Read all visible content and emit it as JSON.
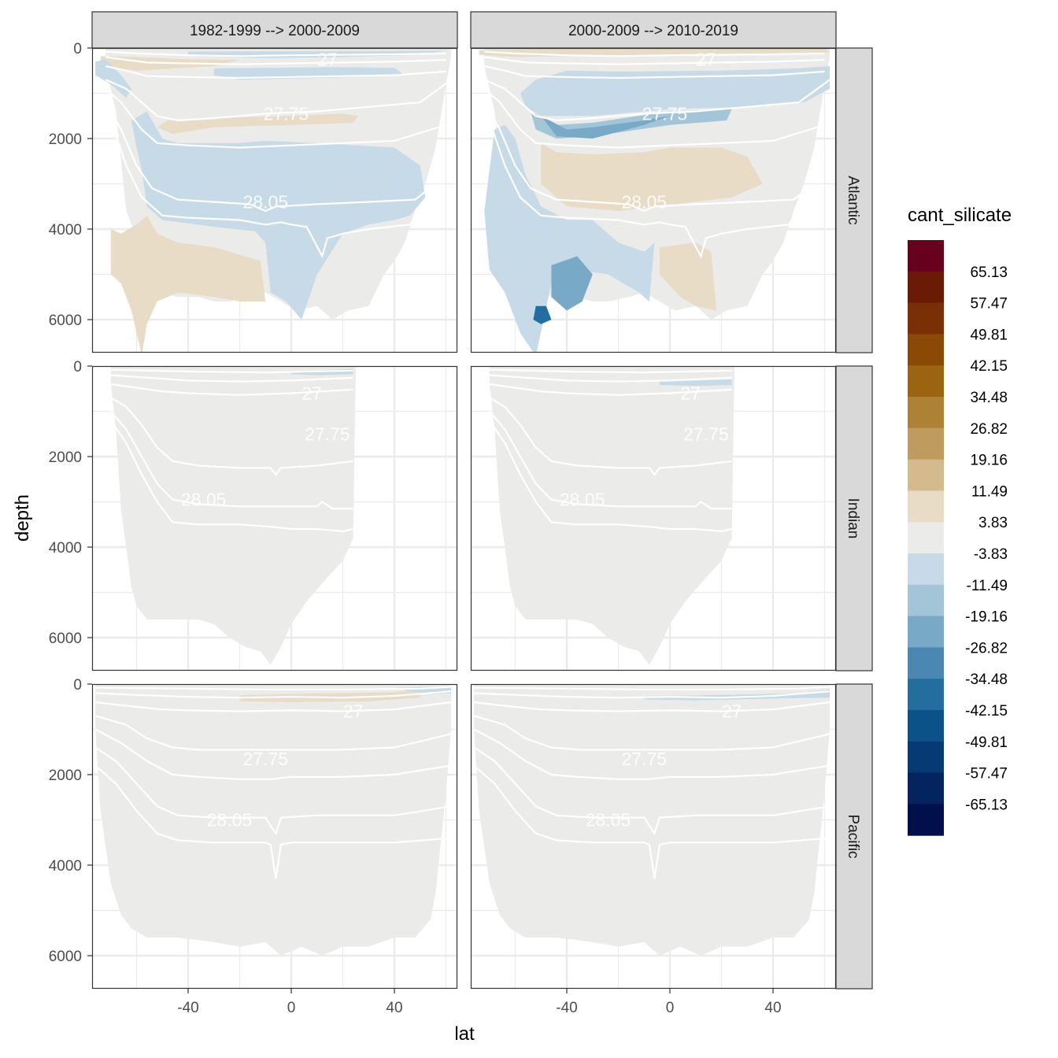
{
  "chart_data": {
    "type": "heatmap",
    "title": "",
    "xlabel": "lat",
    "ylabel": "depth",
    "x_ticks": [
      -40,
      0,
      40
    ],
    "y_ticks": [
      0,
      2000,
      4000,
      6000
    ],
    "xlim": [
      -78,
      64
    ],
    "ylim": [
      6800,
      0
    ],
    "y_reversed": true,
    "columns": [
      "1982-1999 --> 2000-2009",
      "2000-2009 --> 2010-2019"
    ],
    "rows": [
      "Atlantic",
      "Indian",
      "Pacific"
    ],
    "legend": {
      "title": "cant_silicate",
      "labels": [
        "65.13",
        "57.47",
        "49.81",
        "42.15",
        "34.48",
        "26.82",
        "19.16",
        "11.49",
        "3.83",
        "-3.83",
        "-11.49",
        "-19.16",
        "-26.82",
        "-34.48",
        "-42.15",
        "-49.81",
        "-57.47",
        "-65.13"
      ],
      "colors": [
        "#67001f",
        "#6a1a05",
        "#7a3004",
        "#8a4a06",
        "#9a6410",
        "#ae8234",
        "#bf9b5e",
        "#d4bb8e",
        "#e8dcc7",
        "#ebebe9",
        "#c7dae7",
        "#a2c5d8",
        "#78a9c7",
        "#4a88b3",
        "#236e9f",
        "#0a5288",
        "#053a75",
        "#03245f",
        "#020f4d"
      ]
    },
    "contour_labels": [
      "27",
      "27.75",
      "28.05"
    ],
    "colors": {
      "background": "#ffffff",
      "panel_fill": "#ebebe9",
      "grid": "#ebebeb",
      "strip": "#d9d9d9",
      "contour": "#ffffff",
      "positive_light": "#e8dcc7",
      "positive_mid": "#d4bb8e",
      "negative_light": "#c7dae7",
      "negative_mid": "#a2c5d8",
      "negative_dark": "#78a9c7",
      "negative_deep": "#236e9f"
    }
  }
}
